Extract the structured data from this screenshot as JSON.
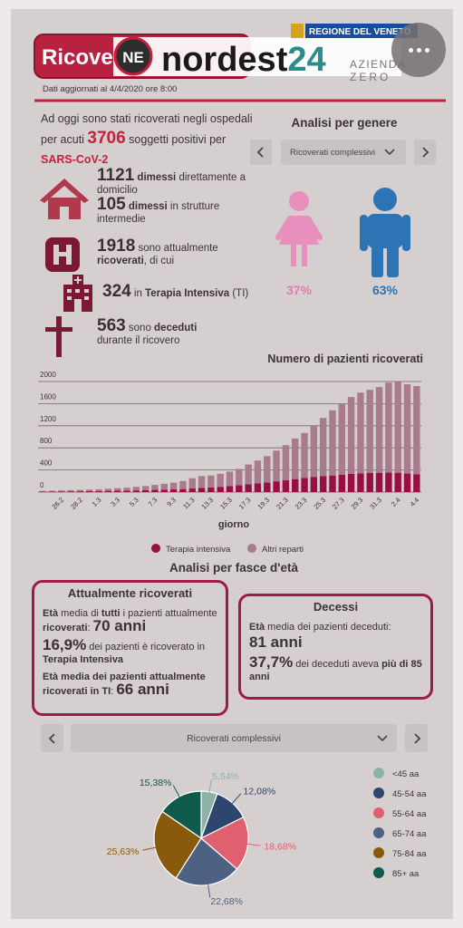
{
  "header": {
    "title": "Ricoverati",
    "logo_ne": "NE",
    "logo_text": [
      "nordest",
      "24"
    ],
    "region": "REGIONE DEL VENETO",
    "agency": [
      "AZIENDA",
      "ZERO"
    ],
    "updated": "Dati aggiornati al 4/4/2020 ore 8:00"
  },
  "intro": [
    "Ad oggi sono stati ricoverati negli ospedali per acuti ",
    "3706",
    " soggetti positivi per ",
    "SARS-CoV-2"
  ],
  "stats": [
    [
      "1121",
      " dimessi",
      " direttamente a domicilio"
    ],
    [
      "105",
      " dimessi",
      " in strutture intermedie"
    ],
    [
      "1918",
      " sono attualmente ",
      "ricoverati",
      ", di cui"
    ],
    [
      "324",
      " in ",
      "Terapia Intensiva",
      " (TI)"
    ],
    [
      "563",
      " sono ",
      "deceduti",
      " durante il ricovero"
    ]
  ],
  "gender": {
    "title": "Analisi per genere",
    "selector": "Ricoverati complessivi",
    "labels": [
      "37%",
      "63%"
    ]
  },
  "age": {
    "title": "Analisi per fasce d'età",
    "current": {
      "title": "Attualmente ricoverati",
      "lines": [
        [
          "Età",
          " media di ",
          "tutti",
          " i pazienti attualmente ",
          "ricoverati",
          ": ",
          "70 anni"
        ],
        [
          "16,9%",
          " dei pazienti è ricoverato in ",
          "Terapia Intensiva"
        ],
        [
          "Età media dei pazienti attualmente ",
          "ricoverati in TI",
          ": ",
          "66 anni"
        ]
      ]
    },
    "deaths": {
      "title": "Decessi",
      "lines": [
        [
          "Età",
          " media dei pazienti deceduti:",
          "81 anni"
        ],
        [
          "37,7%",
          " dei deceduti aveva ",
          "più di 85 anni"
        ]
      ]
    }
  },
  "chart_data": [
    {
      "type": "bar",
      "stacked": true,
      "title": "Numero di pazienti ricoverati",
      "x_label": "giorno",
      "categories": [
        null,
        null,
        "26.2",
        null,
        "28.2",
        null,
        "1.3",
        null,
        "3.3",
        null,
        "5.3",
        null,
        "7.3",
        null,
        "9.3",
        null,
        "11.3",
        null,
        "13.3",
        null,
        "15.3",
        null,
        "17.3",
        null,
        "19.3",
        null,
        "21.3",
        null,
        "23.3",
        null,
        "25.3",
        null,
        "27.3",
        null,
        "29.3",
        null,
        "31.3",
        null,
        "2.4",
        null,
        "4.4"
      ],
      "series": [
        {
          "name": "Terapia intensiva",
          "color": "#9b0e45",
          "values": [
            10,
            10,
            12,
            14,
            15,
            17,
            19,
            22,
            25,
            28,
            30,
            35,
            40,
            45,
            50,
            55,
            65,
            75,
            85,
            95,
            110,
            125,
            140,
            160,
            175,
            195,
            215,
            235,
            255,
            275,
            290,
            300,
            315,
            330,
            340,
            345,
            350,
            355,
            350,
            335,
            324
          ]
        },
        {
          "name": "Altri reparti",
          "color": "#a87b8d",
          "values": [
            10,
            15,
            18,
            21,
            25,
            28,
            31,
            38,
            45,
            52,
            65,
            75,
            90,
            105,
            120,
            145,
            185,
            215,
            215,
            235,
            260,
            295,
            360,
            410,
            475,
            555,
            635,
            735,
            815,
            935,
            1050,
            1180,
            1275,
            1390,
            1460,
            1505,
            1550,
            1625,
            1645,
            1615,
            1594
          ]
        }
      ],
      "ylim": [
        0,
        2000
      ],
      "yticks": [
        0,
        400,
        800,
        1200,
        1600,
        2000
      ],
      "grid": true,
      "legend": "bottom"
    },
    {
      "type": "pie",
      "selector": "Ricoverati complessivi",
      "categories": [
        "<45 aa",
        "45-54 aa",
        "55-64 aa",
        "65-74 aa",
        "75-84 aa",
        "85+ aa"
      ],
      "values": [
        5.54,
        12.08,
        18.68,
        22.68,
        25.63,
        15.38
      ],
      "value_labels": [
        "5,54%",
        "12,08%",
        "18,68%",
        "22,68%",
        "25,63%",
        "15,38%"
      ],
      "colors": [
        "#8cb3a6",
        "#2c4670",
        "#e0606f",
        "#4d6283",
        "#8a5a0c",
        "#0f5a48"
      ],
      "legend": "right"
    }
  ]
}
